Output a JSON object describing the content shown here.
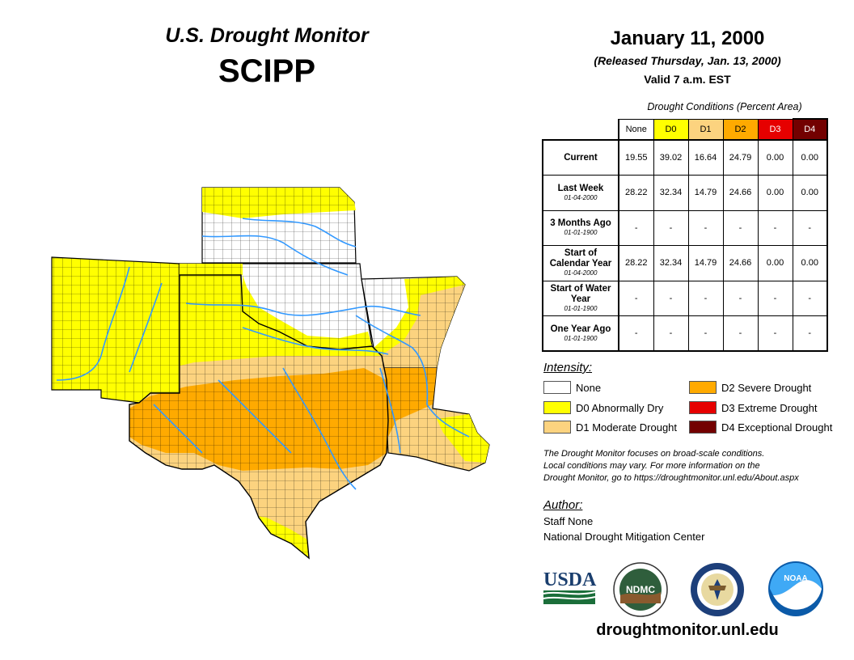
{
  "header": {
    "title": "U.S. Drought Monitor",
    "region": "SCIPP",
    "date": "January 11, 2000",
    "released": "(Released Thursday, Jan. 13, 2000)",
    "valid": "Valid 7 a.m. EST"
  },
  "table": {
    "caption": "Drought Conditions (Percent Area)",
    "columns": [
      "None",
      "D0",
      "D1",
      "D2",
      "D3",
      "D4"
    ],
    "rows": [
      {
        "label": "Current",
        "sub": "",
        "values": [
          "19.55",
          "39.02",
          "16.64",
          "24.79",
          "0.00",
          "0.00"
        ]
      },
      {
        "label": "Last Week",
        "sub": "01-04-2000",
        "values": [
          "28.22",
          "32.34",
          "14.79",
          "24.66",
          "0.00",
          "0.00"
        ]
      },
      {
        "label": "3 Months Ago",
        "sub": "01-01-1900",
        "values": [
          "-",
          "-",
          "-",
          "-",
          "-",
          "-"
        ]
      },
      {
        "label": "Start of Calendar Year",
        "sub": "01-04-2000",
        "values": [
          "28.22",
          "32.34",
          "14.79",
          "24.66",
          "0.00",
          "0.00"
        ]
      },
      {
        "label": "Start of Water Year",
        "sub": "01-01-1900",
        "values": [
          "-",
          "-",
          "-",
          "-",
          "-",
          "-"
        ]
      },
      {
        "label": "One Year Ago",
        "sub": "01-01-1900",
        "values": [
          "-",
          "-",
          "-",
          "-",
          "-",
          "-"
        ]
      }
    ]
  },
  "legend": {
    "title": "Intensity:",
    "items": [
      {
        "label": "None",
        "color": "#ffffff"
      },
      {
        "label": "D0 Abnormally Dry",
        "color": "#ffff00"
      },
      {
        "label": "D1 Moderate Drought",
        "color": "#fcd37f"
      },
      {
        "label": "D2 Severe Drought",
        "color": "#ffaa00"
      },
      {
        "label": "D3 Extreme Drought",
        "color": "#e60000"
      },
      {
        "label": "D4 Exceptional Drought",
        "color": "#730000"
      }
    ]
  },
  "note": {
    "line1": "The Drought Monitor focuses on broad-scale conditions.",
    "line2": "Local conditions may vary. For more information on the",
    "line3": "Drought Monitor, go to https://droughtmonitor.unl.edu/About.aspx"
  },
  "author": {
    "title": "Author:",
    "name": "Staff None",
    "org": "National Drought Mitigation Center"
  },
  "logos": {
    "usda": "USDA",
    "ndmc": "NDMC",
    "noaa": "NOAA"
  },
  "footer": {
    "website": "droughtmonitor.unl.edu"
  },
  "colors": {
    "none": "#ffffff",
    "d0": "#ffff00",
    "d1": "#fcd37f",
    "d2": "#ffaa00",
    "d3": "#e60000",
    "d4": "#730000",
    "river": "#3399ff"
  }
}
